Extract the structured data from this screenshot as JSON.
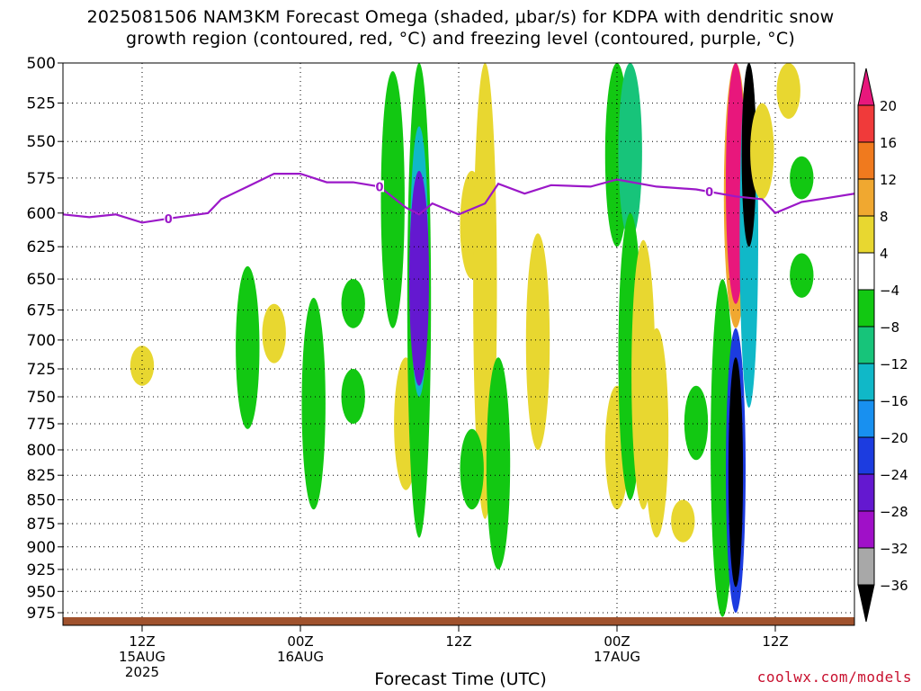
{
  "title_line1": "2025081506 NAM3KM Forecast Omega (shaded, μbar/s) for KDPA with dendritic snow",
  "title_line2": "growth region (contoured, red, °C) and freezing level (contoured, purple, °C)",
  "credit": "coolwx.com/models",
  "chart_data": {
    "type": "heatmap",
    "title": "2025081506 NAM3KM Forecast Omega (shaded, μbar/s) for KDPA with dendritic snow growth region (contoured, red, °C) and freezing level (contoured, purple, °C)",
    "xlabel": "Forecast Time (UTC)",
    "ylabel": "",
    "x_axis": {
      "start": "2025-08-15 06Z",
      "end": "2025-08-17 18Z",
      "ticks": [
        {
          "time": "2025-08-15 12Z",
          "lines": [
            "12Z",
            "15AUG",
            "2025"
          ]
        },
        {
          "time": "2025-08-16 00Z",
          "lines": [
            "00Z",
            "16AUG"
          ]
        },
        {
          "time": "2025-08-16 12Z",
          "lines": [
            "12Z"
          ]
        },
        {
          "time": "2025-08-17 00Z",
          "lines": [
            "00Z",
            "17AUG"
          ]
        },
        {
          "time": "2025-08-17 12Z",
          "lines": [
            "12Z"
          ]
        }
      ]
    },
    "y_axis": {
      "scale": "log",
      "inverted": true,
      "range": [
        500,
        990
      ],
      "ticks": [
        500,
        525,
        550,
        575,
        600,
        625,
        650,
        675,
        700,
        725,
        750,
        775,
        800,
        825,
        850,
        875,
        900,
        925,
        950,
        975
      ]
    },
    "grid": true,
    "colorbar": {
      "placement": "right",
      "levels": [
        20,
        16,
        12,
        8,
        4,
        -4,
        -8,
        -12,
        -16,
        -20,
        -24,
        -28,
        -32,
        -36
      ],
      "bins": [
        {
          "range": "> 20",
          "color": "#e8177c"
        },
        {
          "range": "16 to 20",
          "color": "#f03a3a"
        },
        {
          "range": "12 to 16",
          "color": "#f07a1e"
        },
        {
          "range": "8 to 12",
          "color": "#f0a830"
        },
        {
          "range": "4 to 8",
          "color": "#e8d730"
        },
        {
          "range": "-4 to 4",
          "color": "#ffffff"
        },
        {
          "range": "-8 to -4",
          "color": "#12c812"
        },
        {
          "range": "-12 to -8",
          "color": "#17c47a"
        },
        {
          "range": "-16 to -12",
          "color": "#10b8c8"
        },
        {
          "range": "-20 to -16",
          "color": "#1890f0"
        },
        {
          "range": "-24 to -20",
          "color": "#1c3ce0"
        },
        {
          "range": "-28 to -24",
          "color": "#6418d0"
        },
        {
          "range": "-32 to -28",
          "color": "#a010c8"
        },
        {
          "range": "-36 to -32",
          "color": "#a8a8a8"
        },
        {
          "range": "< -36",
          "color": "#000000"
        }
      ]
    },
    "freezing_level": {
      "color": "#9b18c8",
      "label": "0",
      "points": [
        [
          "2025-08-15 06Z",
          601
        ],
        [
          "2025-08-15 08Z",
          603
        ],
        [
          "2025-08-15 10Z",
          601
        ],
        [
          "2025-08-15 12Z",
          607
        ],
        [
          "2025-08-15 14Z",
          604
        ],
        [
          "2025-08-15 17Z",
          600
        ],
        [
          "2025-08-15 18Z",
          590
        ],
        [
          "2025-08-15 20Z",
          581
        ],
        [
          "2025-08-15 22Z",
          572
        ],
        [
          "2025-08-16 00Z",
          572
        ],
        [
          "2025-08-16 02Z",
          578
        ],
        [
          "2025-08-16 04Z",
          578
        ],
        [
          "2025-08-16 06Z",
          581
        ],
        [
          "2025-08-16 08Z",
          596
        ],
        [
          "2025-08-16 09Z",
          601
        ],
        [
          "2025-08-16 10Z",
          593
        ],
        [
          "2025-08-16 12Z",
          601
        ],
        [
          "2025-08-16 14Z",
          593
        ],
        [
          "2025-08-16 15Z",
          579
        ],
        [
          "2025-08-16 17Z",
          586
        ],
        [
          "2025-08-16 19Z",
          580
        ],
        [
          "2025-08-16 22Z",
          581
        ],
        [
          "2025-08-17 00Z",
          576
        ],
        [
          "2025-08-17 03Z",
          581
        ],
        [
          "2025-08-17 06Z",
          583
        ],
        [
          "2025-08-17 09Z",
          588
        ],
        [
          "2025-08-17 11Z",
          590
        ],
        [
          "2025-08-17 12Z",
          600
        ],
        [
          "2025-08-17 14Z",
          592
        ],
        [
          "2025-08-17 16Z",
          589
        ],
        [
          "2025-08-17 18Z",
          586
        ]
      ],
      "labels_at": [
        "2025-08-15 14Z",
        "2025-08-16 06Z",
        "2025-08-17 07Z"
      ]
    },
    "omega_regions": [
      {
        "time": "2025-08-15 12Z",
        "p_top": 705,
        "p_bot": 740,
        "value": 5
      },
      {
        "time": "2025-08-15 20Z",
        "p_top": 640,
        "p_bot": 780,
        "value": -6
      },
      {
        "time": "2025-08-15 22Z",
        "p_top": 670,
        "p_bot": 720,
        "value": 5
      },
      {
        "time": "2025-08-16 01Z",
        "p_top": 665,
        "p_bot": 860,
        "value": -6
      },
      {
        "time": "2025-08-16 04Z",
        "p_top": 650,
        "p_bot": 690,
        "value": -6
      },
      {
        "time": "2025-08-16 04Z",
        "p_top": 725,
        "p_bot": 775,
        "value": -6
      },
      {
        "time": "2025-08-16 07Z",
        "p_top": 505,
        "p_bot": 690,
        "value": -6
      },
      {
        "time": "2025-08-16 08Z",
        "p_top": 715,
        "p_bot": 840,
        "value": 5
      },
      {
        "time": "2025-08-16 09Z",
        "p_top": 500,
        "p_bot": 890,
        "value": -6
      },
      {
        "time": "2025-08-16 09Z",
        "p_top": 540,
        "p_bot": 750,
        "value": -14
      },
      {
        "time": "2025-08-16 09Z",
        "p_top": 570,
        "p_bot": 740,
        "value": -26
      },
      {
        "time": "2025-08-16 13Z",
        "p_top": 570,
        "p_bot": 650,
        "value": 5
      },
      {
        "time": "2025-08-16 14Z",
        "p_top": 500,
        "p_bot": 870,
        "value": 5
      },
      {
        "time": "2025-08-16 13Z",
        "p_top": 780,
        "p_bot": 860,
        "value": -6
      },
      {
        "time": "2025-08-16 15Z",
        "p_top": 715,
        "p_bot": 925,
        "value": -6
      },
      {
        "time": "2025-08-16 18Z",
        "p_top": 615,
        "p_bot": 800,
        "value": 5
      },
      {
        "time": "2025-08-17 00Z",
        "p_top": 500,
        "p_bot": 625,
        "value": -6
      },
      {
        "time": "2025-08-17 00Z",
        "p_top": 740,
        "p_bot": 860,
        "value": 5
      },
      {
        "time": "2025-08-17 01Z",
        "p_top": 500,
        "p_bot": 620,
        "value": -10
      },
      {
        "time": "2025-08-17 01Z",
        "p_top": 600,
        "p_bot": 850,
        "value": -6
      },
      {
        "time": "2025-08-17 02Z",
        "p_top": 620,
        "p_bot": 860,
        "value": 5
      },
      {
        "time": "2025-08-17 03Z",
        "p_top": 690,
        "p_bot": 890,
        "value": 5
      },
      {
        "time": "2025-08-17 05Z",
        "p_top": 850,
        "p_bot": 895,
        "value": 5
      },
      {
        "time": "2025-08-17 06Z",
        "p_top": 740,
        "p_bot": 810,
        "value": -6
      },
      {
        "time": "2025-08-17 08Z",
        "p_top": 650,
        "p_bot": 980,
        "value": -6
      },
      {
        "time": "2025-08-17 09Z",
        "p_top": 500,
        "p_bot": 690,
        "value": 10
      },
      {
        "time": "2025-08-17 09Z",
        "p_top": 500,
        "p_bot": 670,
        "value": 22
      },
      {
        "time": "2025-08-17 09Z",
        "p_top": 690,
        "p_bot": 975,
        "value": -22
      },
      {
        "time": "2025-08-17 09Z",
        "p_top": 715,
        "p_bot": 945,
        "value": -40
      },
      {
        "time": "2025-08-17 10Z",
        "p_top": 500,
        "p_bot": 760,
        "value": -14
      },
      {
        "time": "2025-08-17 10Z",
        "p_top": 500,
        "p_bot": 625,
        "value": -40
      },
      {
        "time": "2025-08-17 11Z",
        "p_top": 525,
        "p_bot": 590,
        "value": 5
      },
      {
        "time": "2025-08-17 13Z",
        "p_top": 500,
        "p_bot": 535,
        "value": 5
      },
      {
        "time": "2025-08-17 14Z",
        "p_top": 560,
        "p_bot": 590,
        "value": -6
      },
      {
        "time": "2025-08-17 14Z",
        "p_top": 630,
        "p_bot": 665,
        "value": -6
      }
    ],
    "surface_color": "#a0522d"
  }
}
